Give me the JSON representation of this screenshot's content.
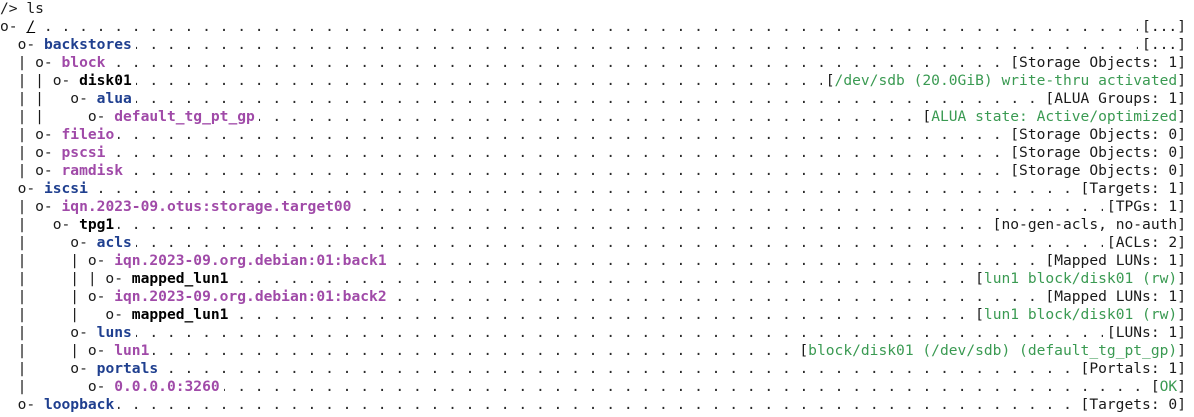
{
  "terminal": {
    "prompt": "/>",
    "command": "ls"
  },
  "tree": [
    {
      "prefix": "o- ",
      "name": "/",
      "name_color": "black",
      "bold": false,
      "underline": true,
      "info_open": "[",
      "info": "...",
      "info_close": "]",
      "info_color": "default"
    },
    {
      "prefix": "  o- ",
      "name": "backstores",
      "name_color": "blue",
      "bold": true,
      "info_open": "[",
      "info": "...",
      "info_close": "]",
      "info_color": "default"
    },
    {
      "prefix": "  | o- ",
      "name": "block",
      "name_color": "magenta",
      "bold": true,
      "info_open": "[",
      "info": "Storage Objects: 1",
      "info_close": "]",
      "info_color": "default"
    },
    {
      "prefix": "  | | o- ",
      "name": "disk01",
      "name_color": "black",
      "bold": true,
      "info_open": "[",
      "info": "/dev/sdb (20.0GiB) write-thru activated",
      "info_close": "]",
      "info_color": "green"
    },
    {
      "prefix": "  | |   o- ",
      "name": "alua",
      "name_color": "blue",
      "bold": true,
      "info_open": "[",
      "info": "ALUA Groups: 1",
      "info_close": "]",
      "info_color": "default"
    },
    {
      "prefix": "  | |     o- ",
      "name": "default_tg_pt_gp",
      "name_color": "magenta",
      "bold": true,
      "info_open": "[",
      "info": "ALUA state: Active/optimized",
      "info_close": "]",
      "info_color": "green"
    },
    {
      "prefix": "  | o- ",
      "name": "fileio",
      "name_color": "magenta",
      "bold": true,
      "info_open": "[",
      "info": "Storage Objects: 0",
      "info_close": "]",
      "info_color": "default"
    },
    {
      "prefix": "  | o- ",
      "name": "pscsi",
      "name_color": "magenta",
      "bold": true,
      "info_open": "[",
      "info": "Storage Objects: 0",
      "info_close": "]",
      "info_color": "default"
    },
    {
      "prefix": "  | o- ",
      "name": "ramdisk",
      "name_color": "magenta",
      "bold": true,
      "info_open": "[",
      "info": "Storage Objects: 0",
      "info_close": "]",
      "info_color": "default"
    },
    {
      "prefix": "  o- ",
      "name": "iscsi",
      "name_color": "blue",
      "bold": true,
      "info_open": "[",
      "info": "Targets: 1",
      "info_close": "]",
      "info_color": "default"
    },
    {
      "prefix": "  | o- ",
      "name": "iqn.2023-09.otus:storage.target00",
      "name_color": "magenta",
      "bold": true,
      "info_open": "[",
      "info": "TPGs: 1",
      "info_close": "]",
      "info_color": "default"
    },
    {
      "prefix": "  |   o- ",
      "name": "tpg1",
      "name_color": "black",
      "bold": true,
      "info_open": "[",
      "info": "no-gen-acls, no-auth",
      "info_close": "]",
      "info_color": "default"
    },
    {
      "prefix": "  |     o- ",
      "name": "acls",
      "name_color": "blue",
      "bold": true,
      "info_open": "[",
      "info": "ACLs: 2",
      "info_close": "]",
      "info_color": "default"
    },
    {
      "prefix": "  |     | o- ",
      "name": "iqn.2023-09.org.debian:01:back1",
      "name_color": "magenta",
      "bold": true,
      "info_open": "[",
      "info": "Mapped LUNs: 1",
      "info_close": "]",
      "info_color": "default"
    },
    {
      "prefix": "  |     | | o- ",
      "name": "mapped_lun1",
      "name_color": "black",
      "bold": true,
      "info_open": "[",
      "info": "lun1 block/disk01 (rw)",
      "info_close": "]",
      "info_color": "green"
    },
    {
      "prefix": "  |     | o- ",
      "name": "iqn.2023-09.org.debian:01:back2",
      "name_color": "magenta",
      "bold": true,
      "info_open": "[",
      "info": "Mapped LUNs: 1",
      "info_close": "]",
      "info_color": "default"
    },
    {
      "prefix": "  |     |   o- ",
      "name": "mapped_lun1",
      "name_color": "black",
      "bold": true,
      "info_open": "[",
      "info": "lun1 block/disk01 (rw)",
      "info_close": "]",
      "info_color": "green"
    },
    {
      "prefix": "  |     o- ",
      "name": "luns",
      "name_color": "blue",
      "bold": true,
      "info_open": "[",
      "info": "LUNs: 1",
      "info_close": "]",
      "info_color": "default"
    },
    {
      "prefix": "  |     | o- ",
      "name": "lun1",
      "name_color": "magenta",
      "bold": true,
      "info_open": "[",
      "info": "block/disk01 (/dev/sdb) (default_tg_pt_gp)",
      "info_close": "]",
      "info_color": "green"
    },
    {
      "prefix": "  |     o- ",
      "name": "portals",
      "name_color": "blue",
      "bold": true,
      "info_open": "[",
      "info": "Portals: 1",
      "info_close": "]",
      "info_color": "default"
    },
    {
      "prefix": "  |       o- ",
      "name": "0.0.0.0:3260",
      "name_color": "magenta",
      "bold": true,
      "info_open": "[",
      "info": "OK",
      "info_close": "]",
      "info_color": "green"
    },
    {
      "prefix": "  o- ",
      "name": "loopback",
      "name_color": "blue",
      "bold": true,
      "info_open": "[",
      "info": "Targets: 0",
      "info_close": "]",
      "info_color": "default"
    }
  ],
  "colors": {
    "background": "#ffffff",
    "text": "#1a1a1a",
    "blue": "#1f3f8f",
    "magenta": "#a04aa8",
    "green": "#3a9a52"
  }
}
